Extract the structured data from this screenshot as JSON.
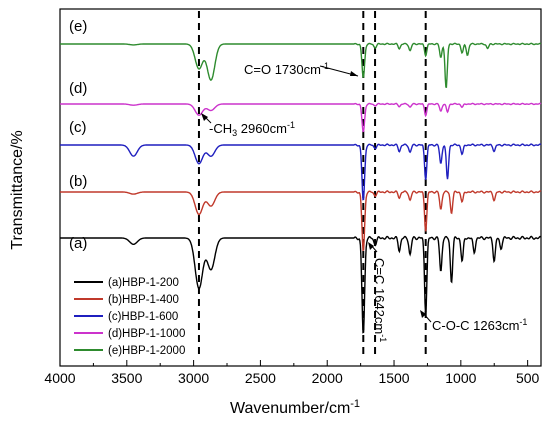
{
  "chart_data": {
    "type": "line",
    "title": "",
    "xlabel": "Wavenumber/cm",
    "xlabel_sup": "-1",
    "ylabel": "Transmittance/%",
    "xlim": [
      4000,
      400
    ],
    "x_ticks": [
      4000,
      3500,
      3000,
      2500,
      2000,
      1500,
      1000,
      500
    ],
    "y_ticks_shown": false,
    "grid": false,
    "legend_position": "bottom-left",
    "series": [
      {
        "name": "(a)HBP-1-200",
        "panel": "(a)",
        "color": "#000000",
        "peaks": [
          [
            3450,
            0.06
          ],
          [
            2960,
            0.48
          ],
          [
            2870,
            0.3
          ],
          [
            1730,
            0.92
          ],
          [
            1642,
            0.06
          ],
          [
            1460,
            0.12
          ],
          [
            1380,
            0.16
          ],
          [
            1263,
            0.72
          ],
          [
            1150,
            0.32
          ],
          [
            1070,
            0.42
          ],
          [
            990,
            0.22
          ],
          [
            900,
            0.14
          ],
          [
            750,
            0.22
          ],
          [
            700,
            0.1
          ]
        ]
      },
      {
        "name": "(b)HBP-1-400",
        "panel": "(b)",
        "color": "#c0392b",
        "peaks": [
          [
            3450,
            0.03
          ],
          [
            2960,
            0.32
          ],
          [
            2870,
            0.2
          ],
          [
            1730,
            0.85
          ],
          [
            1642,
            0.05
          ],
          [
            1460,
            0.08
          ],
          [
            1380,
            0.12
          ],
          [
            1263,
            0.55
          ],
          [
            1150,
            0.25
          ],
          [
            1070,
            0.3
          ],
          [
            990,
            0.14
          ],
          [
            750,
            0.12
          ]
        ]
      },
      {
        "name": "(c)HBP-1-600",
        "panel": "(c)",
        "color": "#1f1fbf",
        "peaks": [
          [
            3450,
            0.18
          ],
          [
            2960,
            0.3
          ],
          [
            2870,
            0.18
          ],
          [
            1730,
            0.9
          ],
          [
            1642,
            0.05
          ],
          [
            1460,
            0.1
          ],
          [
            1380,
            0.12
          ],
          [
            1263,
            0.55
          ],
          [
            1150,
            0.3
          ],
          [
            1100,
            0.55
          ],
          [
            990,
            0.15
          ],
          [
            750,
            0.1
          ]
        ]
      },
      {
        "name": "(d)HBP-1-1000",
        "panel": "(d)",
        "color": "#cc33cc",
        "peaks": [
          [
            3450,
            0.03
          ],
          [
            2960,
            0.28
          ],
          [
            2870,
            0.16
          ],
          [
            1730,
            0.7
          ],
          [
            1642,
            0.04
          ],
          [
            1460,
            0.06
          ],
          [
            1380,
            0.08
          ],
          [
            1263,
            0.28
          ],
          [
            1150,
            0.18
          ],
          [
            1100,
            0.2
          ],
          [
            990,
            0.08
          ]
        ]
      },
      {
        "name": "(e)HBP-1-2000",
        "panel": "(e)",
        "color": "#2e8b2e",
        "peaks": [
          [
            3450,
            0.02
          ],
          [
            2960,
            0.55
          ],
          [
            2870,
            0.8
          ],
          [
            1730,
            0.75
          ],
          [
            1642,
            0.08
          ],
          [
            1460,
            0.1
          ],
          [
            1380,
            0.15
          ],
          [
            1263,
            0.25
          ],
          [
            1150,
            0.3
          ],
          [
            1110,
            1.0
          ],
          [
            990,
            0.2
          ],
          [
            950,
            0.25
          ],
          [
            800,
            0.1
          ]
        ]
      }
    ],
    "annotations": [
      {
        "text": "C=O 1730cm",
        "sup": "-1"
      },
      {
        "text": "-CH",
        "sub": "3",
        "text2": " 2960cm",
        "sup": "-1"
      },
      {
        "text": "C=C 1642cm",
        "sup": "-1"
      },
      {
        "text": "C-O-C 1263cm",
        "sup": "-1"
      }
    ],
    "reference_lines_x": [
      2960,
      1730,
      1642,
      1263
    ]
  }
}
